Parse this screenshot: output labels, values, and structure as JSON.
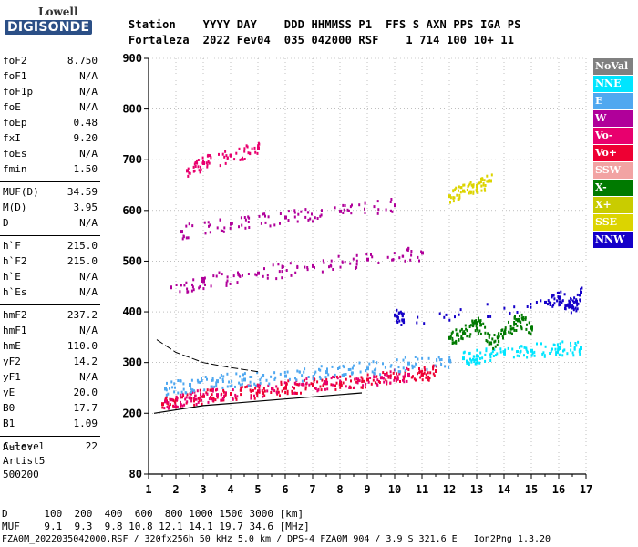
{
  "logo": {
    "line1": "Lowell",
    "line2": "DIGISONDE"
  },
  "header": {
    "labels_line": "Station    YYYY DAY    DDD HHMMSS P1  FFS S AXN PPS IGA PS",
    "values_line": "Fortaleza  2022 Fev04  035 042000 RSF    1 714 100 10+ 11"
  },
  "params": [
    {
      "name": "foF2",
      "value": "8.750"
    },
    {
      "name": "foF1",
      "value": "N/A"
    },
    {
      "name": "foF1p",
      "value": "N/A"
    },
    {
      "name": "foE",
      "value": "N/A"
    },
    {
      "name": "foEp",
      "value": "0.48"
    },
    {
      "name": "fxI",
      "value": "9.20"
    },
    {
      "name": "foEs",
      "value": "N/A"
    },
    {
      "name": "fmin",
      "value": "1.50"
    },
    {
      "name": "MUF(D)",
      "value": "34.59"
    },
    {
      "name": "M(D)",
      "value": "3.95"
    },
    {
      "name": "D",
      "value": "N/A"
    },
    {
      "name": "h`F",
      "value": "215.0"
    },
    {
      "name": "h`F2",
      "value": "215.0"
    },
    {
      "name": "h`E",
      "value": "N/A"
    },
    {
      "name": "h`Es",
      "value": "N/A"
    },
    {
      "name": "hmF2",
      "value": "237.2"
    },
    {
      "name": "hmF1",
      "value": "N/A"
    },
    {
      "name": "hmE",
      "value": "110.0"
    },
    {
      "name": "yF2",
      "value": "14.2"
    },
    {
      "name": "yF1",
      "value": "N/A"
    },
    {
      "name": "yE",
      "value": "20.0"
    },
    {
      "name": "B0",
      "value": "17.7"
    },
    {
      "name": "B1",
      "value": "1.09"
    },
    {
      "name": "C-level",
      "value": "22"
    }
  ],
  "autoscaling": {
    "line1": "Auto:",
    "line2": "Artist5",
    "line3": "500200"
  },
  "footer": {
    "d_line": "D      100  200  400  600  800 1000 1500 3000 [km]",
    "muf_line": "MUF    9.1  9.3  9.8 10.8 12.1 14.1 19.7 34.6 [MHz]",
    "file_line": "FZA0M_2022035042000.RSF / 320fx256h 50 kHz 5.0 km / DPS-4 FZA0M 904 / 3.9 S 321.6 E   Ion2Png 1.3.20"
  },
  "legend": [
    {
      "label": "NoVal",
      "color": "#808080"
    },
    {
      "label": "NNE",
      "color": "#00e5ff"
    },
    {
      "label": "E",
      "color": "#4fa8f0"
    },
    {
      "label": "W",
      "color": "#b0009a"
    },
    {
      "label": "Vo-",
      "color": "#e8006e"
    },
    {
      "label": "Vo+",
      "color": "#ee0033"
    },
    {
      "label": "SSW",
      "color": "#f2a3a3"
    },
    {
      "label": "X-",
      "color": "#007a00"
    },
    {
      "label": "X+",
      "color": "#c9cc00"
    },
    {
      "label": "SSE",
      "color": "#dcd400"
    },
    {
      "label": "NNW",
      "color": "#1400c8"
    }
  ],
  "chart_data": {
    "type": "scatter",
    "xlabel": "",
    "ylabel": "",
    "xlim": [
      1,
      17
    ],
    "ylim": [
      80,
      900
    ],
    "xticks": [
      1,
      2,
      3,
      4,
      5,
      6,
      7,
      8,
      9,
      10,
      11,
      12,
      13,
      14,
      15,
      16,
      17
    ],
    "yticks": [
      80,
      200,
      300,
      400,
      500,
      600,
      700,
      800,
      900
    ],
    "ytick_labels": [
      "80",
      "200",
      "300",
      "400",
      "500",
      "600",
      "700",
      "800",
      "900"
    ],
    "grid": "dotted",
    "series": [
      {
        "color": "#ee0033",
        "points": [
          [
            1.5,
            220
          ],
          [
            2,
            228
          ],
          [
            3,
            235
          ],
          [
            4,
            240
          ],
          [
            5,
            245
          ],
          [
            6,
            252
          ],
          [
            7,
            258
          ],
          [
            8,
            262
          ],
          [
            9,
            268
          ],
          [
            10,
            272
          ],
          [
            11,
            278
          ],
          [
            11.5,
            285
          ]
        ]
      },
      {
        "color": "#e8006e",
        "points": [
          [
            1.6,
            225
          ],
          [
            2.5,
            232
          ],
          [
            3.5,
            238
          ],
          [
            5.5,
            250
          ],
          [
            7.5,
            262
          ],
          [
            9.5,
            272
          ],
          [
            10.5,
            278
          ]
        ]
      },
      {
        "color": "#4fa8f0",
        "points": [
          [
            1.6,
            250
          ],
          [
            2.5,
            258
          ],
          [
            3.5,
            265
          ],
          [
            4.5,
            268
          ],
          [
            6,
            275
          ],
          [
            7.5,
            283
          ],
          [
            9,
            290
          ],
          [
            10.5,
            300
          ],
          [
            12,
            305
          ]
        ]
      },
      {
        "color": "#00e5ff",
        "points": [
          [
            12.5,
            310
          ],
          [
            13,
            315
          ],
          [
            14,
            320
          ],
          [
            15,
            325
          ],
          [
            16,
            330
          ],
          [
            16.8,
            330
          ]
        ]
      },
      {
        "color": "#007a00",
        "points": [
          [
            12,
            350
          ],
          [
            12.5,
            360
          ],
          [
            13,
            380
          ],
          [
            13.5,
            340
          ],
          [
            14,
            360
          ],
          [
            14.5,
            385
          ],
          [
            15,
            370
          ]
        ]
      },
      {
        "color": "#1400c8",
        "points": [
          [
            10,
            395
          ],
          [
            10.3,
            385
          ],
          [
            15.5,
            420
          ],
          [
            16,
            430
          ],
          [
            16.5,
            410
          ],
          [
            16.8,
            440
          ]
        ]
      },
      {
        "color": "#b0009a",
        "points": [
          [
            1.8,
            450
          ],
          [
            3,
            462
          ],
          [
            5,
            478
          ],
          [
            7,
            492
          ],
          [
            9,
            505
          ],
          [
            11,
            518
          ]
        ]
      },
      {
        "color": "#b0009a",
        "points": [
          [
            2.2,
            560
          ],
          [
            4,
            575
          ],
          [
            6,
            588
          ],
          [
            8,
            600
          ],
          [
            10,
            612
          ]
        ]
      },
      {
        "color": "#e8006e",
        "points": [
          [
            2.4,
            680
          ],
          [
            3,
            695
          ],
          [
            4,
            710
          ],
          [
            5,
            725
          ]
        ]
      },
      {
        "color": "#dcd400",
        "points": [
          [
            12,
            630
          ],
          [
            12.5,
            640
          ],
          [
            13,
            650
          ],
          [
            13.5,
            660
          ]
        ]
      }
    ],
    "trace_line": {
      "points": [
        [
          1.2,
          200
        ],
        [
          3,
          215
        ],
        [
          6,
          228
        ],
        [
          8.8,
          240
        ]
      ]
    },
    "curve_line": {
      "points": [
        [
          1.3,
          345
        ],
        [
          2,
          320
        ],
        [
          3,
          300
        ],
        [
          4,
          290
        ],
        [
          5,
          282
        ]
      ]
    }
  }
}
